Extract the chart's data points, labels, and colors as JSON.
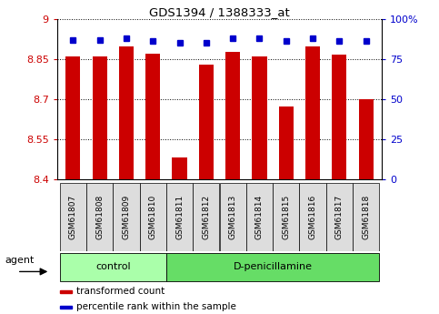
{
  "title": "GDS1394 / 1388333_at",
  "samples": [
    "GSM61807",
    "GSM61808",
    "GSM61809",
    "GSM61810",
    "GSM61811",
    "GSM61812",
    "GSM61813",
    "GSM61814",
    "GSM61815",
    "GSM61816",
    "GSM61817",
    "GSM61818"
  ],
  "bar_values": [
    8.86,
    8.86,
    8.895,
    8.87,
    8.48,
    8.83,
    8.875,
    8.86,
    8.67,
    8.895,
    8.865,
    8.7
  ],
  "percentile_values": [
    87,
    87,
    88,
    86,
    85,
    85,
    88,
    88,
    86,
    88,
    86,
    86
  ],
  "y_min": 8.4,
  "y_max": 9.0,
  "y_ticks": [
    8.4,
    8.55,
    8.7,
    8.85,
    9.0
  ],
  "y_tick_labels": [
    "8.4",
    "8.55",
    "8.7",
    "8.85",
    "9"
  ],
  "y2_ticks": [
    0,
    25,
    50,
    75,
    100
  ],
  "y2_tick_labels": [
    "0",
    "25",
    "50",
    "75",
    "100%"
  ],
  "bar_color": "#cc0000",
  "dot_color": "#0000cc",
  "bar_width": 0.55,
  "groups": [
    {
      "label": "control",
      "start": 0,
      "end": 3,
      "color": "#aaffaa"
    },
    {
      "label": "D-penicillamine",
      "start": 4,
      "end": 11,
      "color": "#66dd66"
    }
  ],
  "agent_label": "agent",
  "grid_color": "#000000",
  "tick_label_color_left": "#cc0000",
  "tick_label_color_right": "#0000cc",
  "sample_box_color": "#dddddd",
  "legend_items": [
    {
      "label": "transformed count",
      "color": "#cc0000"
    },
    {
      "label": "percentile rank within the sample",
      "color": "#0000cc"
    }
  ]
}
